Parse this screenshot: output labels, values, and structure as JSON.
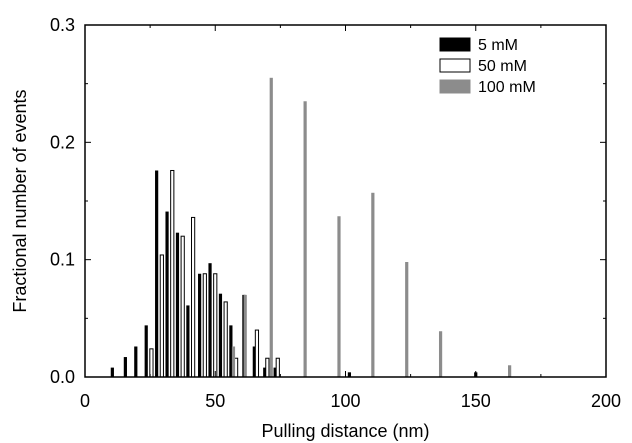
{
  "chart_data": {
    "type": "bar",
    "xlabel": "Pulling distance (nm)",
    "ylabel": "Fractional number of events",
    "xlim": [
      0,
      200
    ],
    "ylim": [
      0,
      0.3
    ],
    "xticks": [
      0,
      50,
      100,
      150,
      200
    ],
    "xtick_labels": [
      "0",
      "50",
      "100",
      "150",
      "200"
    ],
    "yticks": [
      0,
      0.1,
      0.2,
      0.3
    ],
    "ytick_labels": [
      "0.0",
      "0.1",
      "0.2",
      "0.3"
    ],
    "grid": false,
    "legend_position": "top-right",
    "series": [
      {
        "name": "5 mM",
        "color": "#000000",
        "fill": "#000000",
        "points": [
          {
            "x": 10.5,
            "y": 0.008
          },
          {
            "x": 15.5,
            "y": 0.017
          },
          {
            "x": 19.5,
            "y": 0.026
          },
          {
            "x": 23.5,
            "y": 0.044
          },
          {
            "x": 27.5,
            "y": 0.176
          },
          {
            "x": 31.5,
            "y": 0.141
          },
          {
            "x": 35.5,
            "y": 0.123
          },
          {
            "x": 39.5,
            "y": 0.061
          },
          {
            "x": 44.0,
            "y": 0.088
          },
          {
            "x": 48.0,
            "y": 0.097
          },
          {
            "x": 52.0,
            "y": 0.071
          },
          {
            "x": 56.0,
            "y": 0.044
          },
          {
            "x": 61.0,
            "y": 0.07
          },
          {
            "x": 65.0,
            "y": 0.026
          },
          {
            "x": 69.0,
            "y": 0.008
          },
          {
            "x": 73.0,
            "y": 0.008
          },
          {
            "x": 101.5,
            "y": 0.004
          },
          {
            "x": 150.0,
            "y": 0.004
          }
        ]
      },
      {
        "name": "50 mM",
        "color": "#000000",
        "fill": "#ffffff",
        "points": [
          {
            "x": 25.5,
            "y": 0.024
          },
          {
            "x": 29.5,
            "y": 0.104
          },
          {
            "x": 33.5,
            "y": 0.176
          },
          {
            "x": 37.5,
            "y": 0.12
          },
          {
            "x": 41.5,
            "y": 0.136
          },
          {
            "x": 46.0,
            "y": 0.088
          },
          {
            "x": 50.0,
            "y": 0.088
          },
          {
            "x": 54.0,
            "y": 0.064
          },
          {
            "x": 58.0,
            "y": 0.016
          },
          {
            "x": 66.0,
            "y": 0.04
          },
          {
            "x": 70.0,
            "y": 0.016
          },
          {
            "x": 74.0,
            "y": 0.016
          }
        ]
      },
      {
        "name": "100 mM",
        "color": "#8c8c8c",
        "fill": "#8c8c8c",
        "points": [
          {
            "x": 57.0,
            "y": 0.026
          },
          {
            "x": 61.5,
            "y": 0.07
          },
          {
            "x": 71.5,
            "y": 0.255
          },
          {
            "x": 84.5,
            "y": 0.235
          },
          {
            "x": 97.5,
            "y": 0.137
          },
          {
            "x": 110.5,
            "y": 0.157
          },
          {
            "x": 123.5,
            "y": 0.098
          },
          {
            "x": 136.5,
            "y": 0.039
          },
          {
            "x": 163.0,
            "y": 0.01
          }
        ]
      }
    ]
  }
}
